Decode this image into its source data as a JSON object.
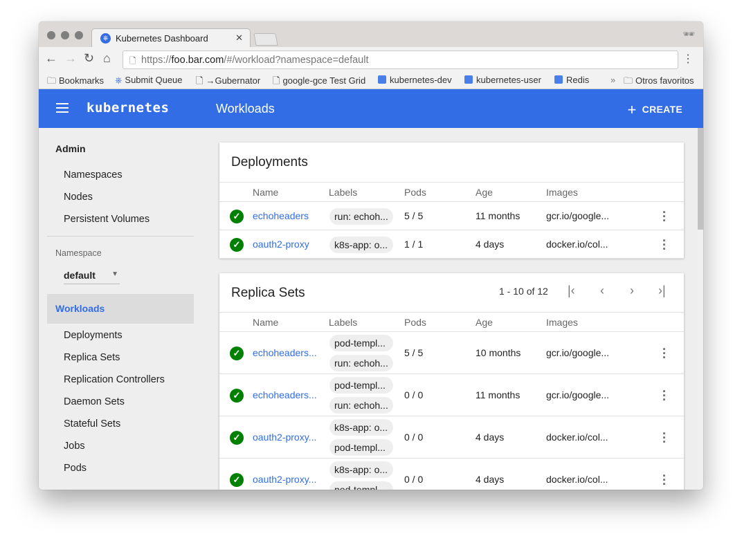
{
  "browser": {
    "tab_title": "Kubernetes Dashboard",
    "url_scheme": "https://",
    "url_host": "foo.bar.com",
    "url_path": "/#/workload?namespace=default",
    "bookmarks": [
      "Bookmarks",
      "Submit Queue",
      "→Gubernator",
      "google-gce Test Grid",
      "kubernetes-dev",
      "kubernetes-user",
      "Redis"
    ],
    "other_bookmarks": "Otros favoritos"
  },
  "header": {
    "brand": "kubernetes",
    "title": "Workloads",
    "create": "CREATE",
    "color": "#326de6"
  },
  "sidebar": {
    "admin": "Admin",
    "admin_items": [
      "Namespaces",
      "Nodes",
      "Persistent Volumes"
    ],
    "namespace_label": "Namespace",
    "namespace_value": "default",
    "workloads": "Workloads",
    "workload_items": [
      "Deployments",
      "Replica Sets",
      "Replication Controllers",
      "Daemon Sets",
      "Stateful Sets",
      "Jobs",
      "Pods"
    ]
  },
  "columns": [
    "Name",
    "Labels",
    "Pods",
    "Age",
    "Images"
  ],
  "deployments": {
    "title": "Deployments",
    "rows": [
      {
        "name": "echoheaders",
        "labels": [
          "run: echoh..."
        ],
        "pods": "5 / 5",
        "age": "11 months",
        "images": "gcr.io/google..."
      },
      {
        "name": "oauth2-proxy",
        "labels": [
          "k8s-app: o..."
        ],
        "pods": "1 / 1",
        "age": "4 days",
        "images": "docker.io/col..."
      }
    ]
  },
  "replica_sets": {
    "title": "Replica Sets",
    "pagination": "1 - 10 of 12",
    "rows": [
      {
        "name": "echoheaders...",
        "labels": [
          "pod-templ...",
          "run: echoh..."
        ],
        "pods": "5 / 5",
        "age": "10 months",
        "images": "gcr.io/google..."
      },
      {
        "name": "echoheaders...",
        "labels": [
          "pod-templ...",
          "run: echoh..."
        ],
        "pods": "0 / 0",
        "age": "11 months",
        "images": "gcr.io/google..."
      },
      {
        "name": "oauth2-proxy...",
        "labels": [
          "k8s-app: o...",
          "pod-templ..."
        ],
        "pods": "0 / 0",
        "age": "4 days",
        "images": "docker.io/col..."
      },
      {
        "name": "oauth2-proxy...",
        "labels": [
          "k8s-app: o...",
          "pod-templ..."
        ],
        "pods": "0 / 0",
        "age": "4 days",
        "images": "docker.io/col..."
      }
    ]
  }
}
